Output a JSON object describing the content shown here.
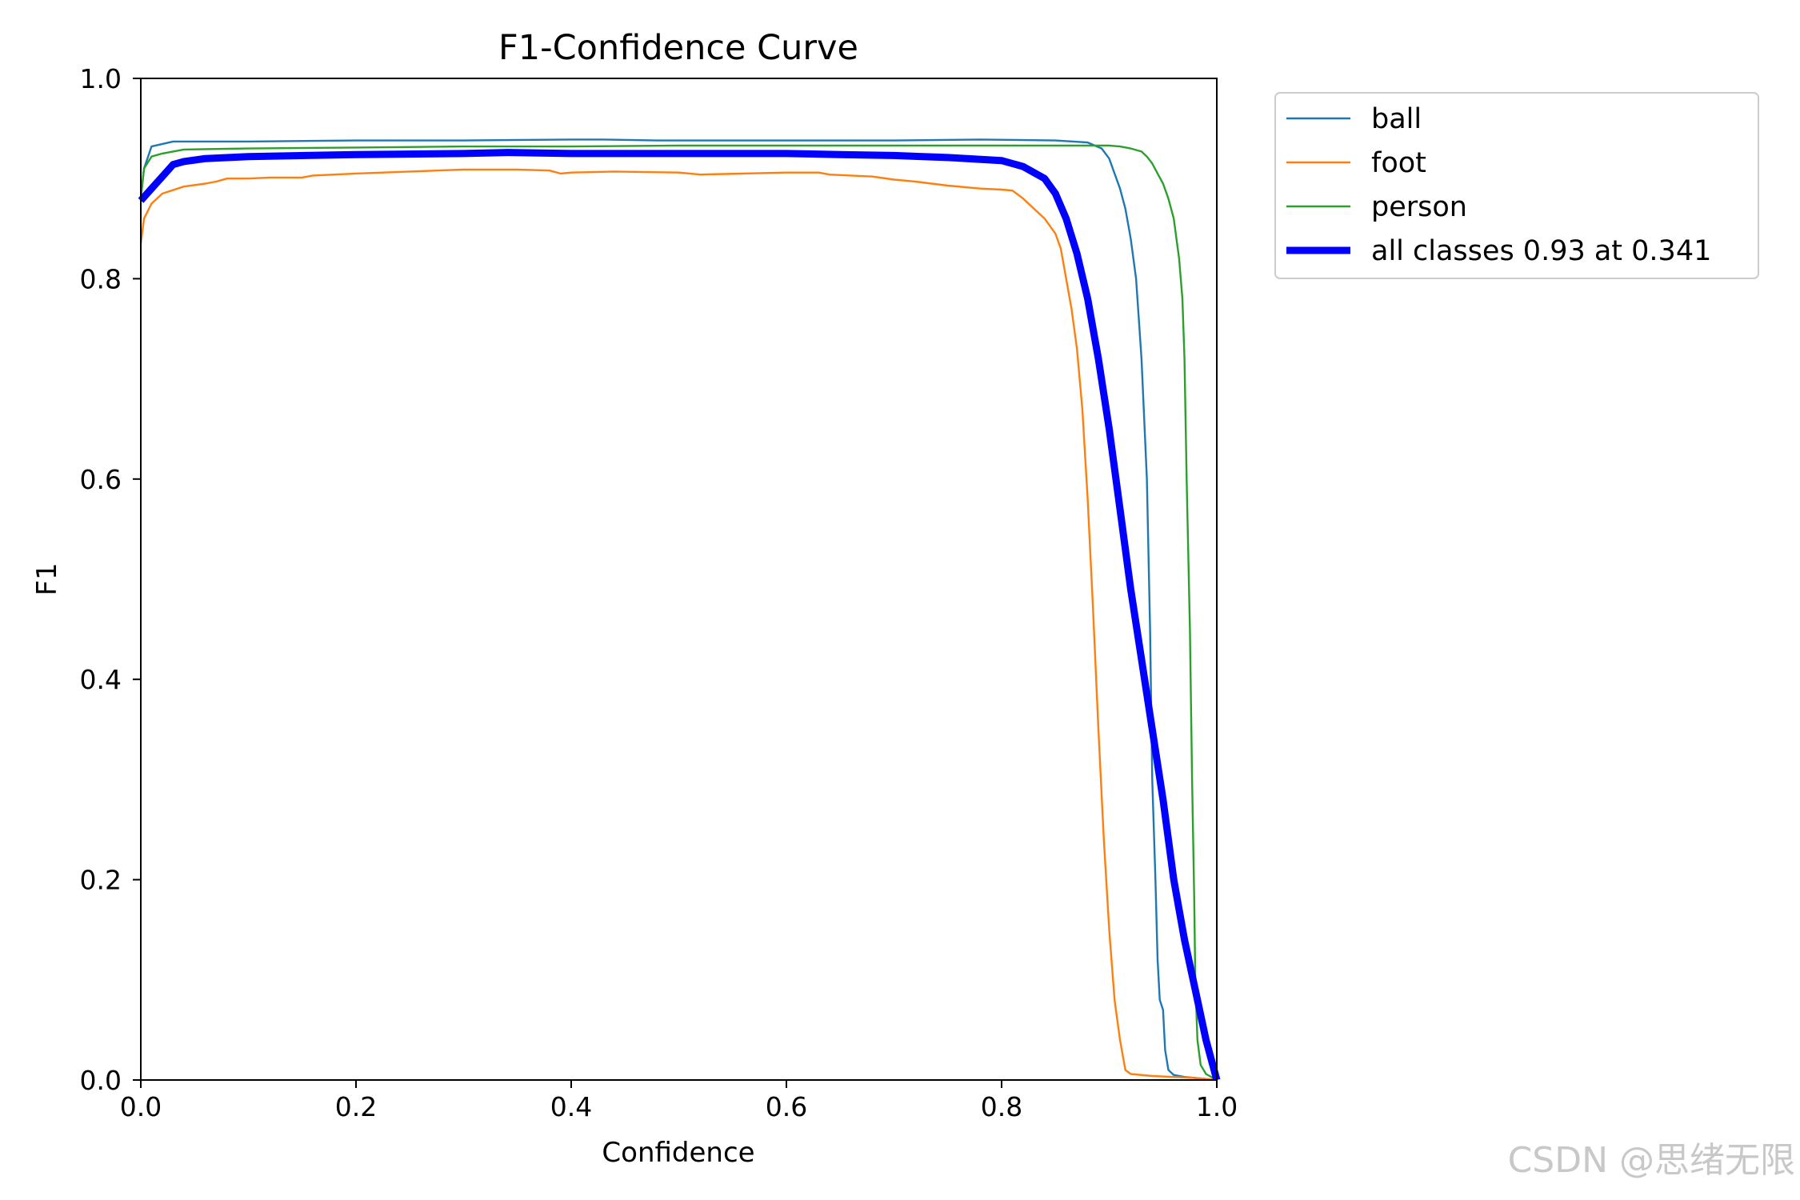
{
  "chart_data": {
    "type": "line",
    "title": "F1-Confidence Curve",
    "xlabel": "Confidence",
    "ylabel": "F1",
    "xlim": [
      0,
      1
    ],
    "ylim": [
      0,
      1
    ],
    "xticks": [
      "0.0",
      "0.2",
      "0.4",
      "0.6",
      "0.8",
      "1.0"
    ],
    "yticks": [
      "0.0",
      "0.2",
      "0.4",
      "0.6",
      "0.8",
      "1.0"
    ],
    "grid": false,
    "legend_position": "outside-top-right",
    "series": [
      {
        "name": "ball",
        "color": "#1f77b4",
        "width": "thin",
        "points": [
          [
            0,
            0.88
          ],
          [
            0.003,
            0.91
          ],
          [
            0.01,
            0.932
          ],
          [
            0.03,
            0.937
          ],
          [
            0.1,
            0.937
          ],
          [
            0.2,
            0.938
          ],
          [
            0.3,
            0.938
          ],
          [
            0.4,
            0.939
          ],
          [
            0.43,
            0.939
          ],
          [
            0.48,
            0.938
          ],
          [
            0.6,
            0.938
          ],
          [
            0.7,
            0.938
          ],
          [
            0.78,
            0.939
          ],
          [
            0.85,
            0.938
          ],
          [
            0.88,
            0.936
          ],
          [
            0.893,
            0.93
          ],
          [
            0.9,
            0.92
          ],
          [
            0.905,
            0.905
          ],
          [
            0.91,
            0.89
          ],
          [
            0.915,
            0.87
          ],
          [
            0.92,
            0.84
          ],
          [
            0.925,
            0.8
          ],
          [
            0.93,
            0.72
          ],
          [
            0.935,
            0.6
          ],
          [
            0.938,
            0.45
          ],
          [
            0.94,
            0.3
          ],
          [
            0.943,
            0.2
          ],
          [
            0.945,
            0.12
          ],
          [
            0.947,
            0.08
          ],
          [
            0.95,
            0.07
          ],
          [
            0.952,
            0.03
          ],
          [
            0.955,
            0.01
          ],
          [
            0.96,
            0.005
          ],
          [
            0.97,
            0.003
          ],
          [
            0.98,
            0.002
          ],
          [
            1.0,
            0.0
          ]
        ]
      },
      {
        "name": "foot",
        "color": "#ff7f0e",
        "width": "thin",
        "points": [
          [
            0,
            0.835
          ],
          [
            0.003,
            0.86
          ],
          [
            0.01,
            0.875
          ],
          [
            0.02,
            0.885
          ],
          [
            0.04,
            0.892
          ],
          [
            0.06,
            0.895
          ],
          [
            0.07,
            0.897
          ],
          [
            0.08,
            0.9
          ],
          [
            0.1,
            0.9
          ],
          [
            0.12,
            0.901
          ],
          [
            0.15,
            0.901
          ],
          [
            0.16,
            0.903
          ],
          [
            0.2,
            0.905
          ],
          [
            0.25,
            0.907
          ],
          [
            0.3,
            0.909
          ],
          [
            0.35,
            0.909
          ],
          [
            0.38,
            0.908
          ],
          [
            0.39,
            0.905
          ],
          [
            0.4,
            0.906
          ],
          [
            0.44,
            0.907
          ],
          [
            0.5,
            0.906
          ],
          [
            0.52,
            0.904
          ],
          [
            0.6,
            0.906
          ],
          [
            0.63,
            0.906
          ],
          [
            0.64,
            0.904
          ],
          [
            0.68,
            0.902
          ],
          [
            0.7,
            0.899
          ],
          [
            0.72,
            0.897
          ],
          [
            0.75,
            0.893
          ],
          [
            0.78,
            0.89
          ],
          [
            0.8,
            0.889
          ],
          [
            0.81,
            0.888
          ],
          [
            0.82,
            0.88
          ],
          [
            0.83,
            0.87
          ],
          [
            0.84,
            0.86
          ],
          [
            0.85,
            0.845
          ],
          [
            0.855,
            0.83
          ],
          [
            0.86,
            0.8
          ],
          [
            0.865,
            0.77
          ],
          [
            0.87,
            0.73
          ],
          [
            0.875,
            0.67
          ],
          [
            0.88,
            0.58
          ],
          [
            0.885,
            0.47
          ],
          [
            0.89,
            0.35
          ],
          [
            0.895,
            0.24
          ],
          [
            0.9,
            0.15
          ],
          [
            0.905,
            0.08
          ],
          [
            0.91,
            0.04
          ],
          [
            0.915,
            0.01
          ],
          [
            0.92,
            0.006
          ],
          [
            0.94,
            0.004
          ],
          [
            0.96,
            0.003
          ],
          [
            0.98,
            0.002
          ],
          [
            1.0,
            0.0
          ]
        ]
      },
      {
        "name": "person",
        "color": "#2ca02c",
        "width": "thin",
        "points": [
          [
            0,
            0.88
          ],
          [
            0.003,
            0.91
          ],
          [
            0.01,
            0.922
          ],
          [
            0.02,
            0.925
          ],
          [
            0.03,
            0.927
          ],
          [
            0.04,
            0.929
          ],
          [
            0.1,
            0.93
          ],
          [
            0.2,
            0.931
          ],
          [
            0.3,
            0.932
          ],
          [
            0.4,
            0.932
          ],
          [
            0.5,
            0.933
          ],
          [
            0.6,
            0.933
          ],
          [
            0.7,
            0.933
          ],
          [
            0.8,
            0.933
          ],
          [
            0.9,
            0.933
          ],
          [
            0.91,
            0.932
          ],
          [
            0.92,
            0.93
          ],
          [
            0.93,
            0.927
          ],
          [
            0.935,
            0.922
          ],
          [
            0.94,
            0.915
          ],
          [
            0.945,
            0.905
          ],
          [
            0.95,
            0.895
          ],
          [
            0.955,
            0.88
          ],
          [
            0.96,
            0.86
          ],
          [
            0.965,
            0.82
          ],
          [
            0.968,
            0.78
          ],
          [
            0.97,
            0.72
          ],
          [
            0.972,
            0.6
          ],
          [
            0.975,
            0.45
          ],
          [
            0.977,
            0.3
          ],
          [
            0.979,
            0.18
          ],
          [
            0.98,
            0.1
          ],
          [
            0.982,
            0.04
          ],
          [
            0.985,
            0.015
          ],
          [
            0.99,
            0.006
          ],
          [
            1.0,
            0.0
          ]
        ]
      },
      {
        "name": "all classes 0.93 at 0.341",
        "color": "#0000ff",
        "width": "thick",
        "points": [
          [
            0,
            0.878
          ],
          [
            0.01,
            0.89
          ],
          [
            0.02,
            0.902
          ],
          [
            0.03,
            0.914
          ],
          [
            0.04,
            0.917
          ],
          [
            0.06,
            0.92
          ],
          [
            0.1,
            0.922
          ],
          [
            0.2,
            0.924
          ],
          [
            0.3,
            0.925
          ],
          [
            0.341,
            0.926
          ],
          [
            0.4,
            0.925
          ],
          [
            0.5,
            0.925
          ],
          [
            0.6,
            0.925
          ],
          [
            0.65,
            0.924
          ],
          [
            0.7,
            0.923
          ],
          [
            0.75,
            0.921
          ],
          [
            0.8,
            0.918
          ],
          [
            0.82,
            0.912
          ],
          [
            0.84,
            0.9
          ],
          [
            0.85,
            0.885
          ],
          [
            0.86,
            0.86
          ],
          [
            0.87,
            0.825
          ],
          [
            0.88,
            0.78
          ],
          [
            0.89,
            0.72
          ],
          [
            0.9,
            0.65
          ],
          [
            0.91,
            0.57
          ],
          [
            0.92,
            0.49
          ],
          [
            0.93,
            0.42
          ],
          [
            0.94,
            0.35
          ],
          [
            0.95,
            0.28
          ],
          [
            0.96,
            0.2
          ],
          [
            0.97,
            0.14
          ],
          [
            0.98,
            0.09
          ],
          [
            0.99,
            0.04
          ],
          [
            1.0,
            0.0
          ]
        ]
      }
    ]
  },
  "watermark": "CSDN @思绪无限"
}
